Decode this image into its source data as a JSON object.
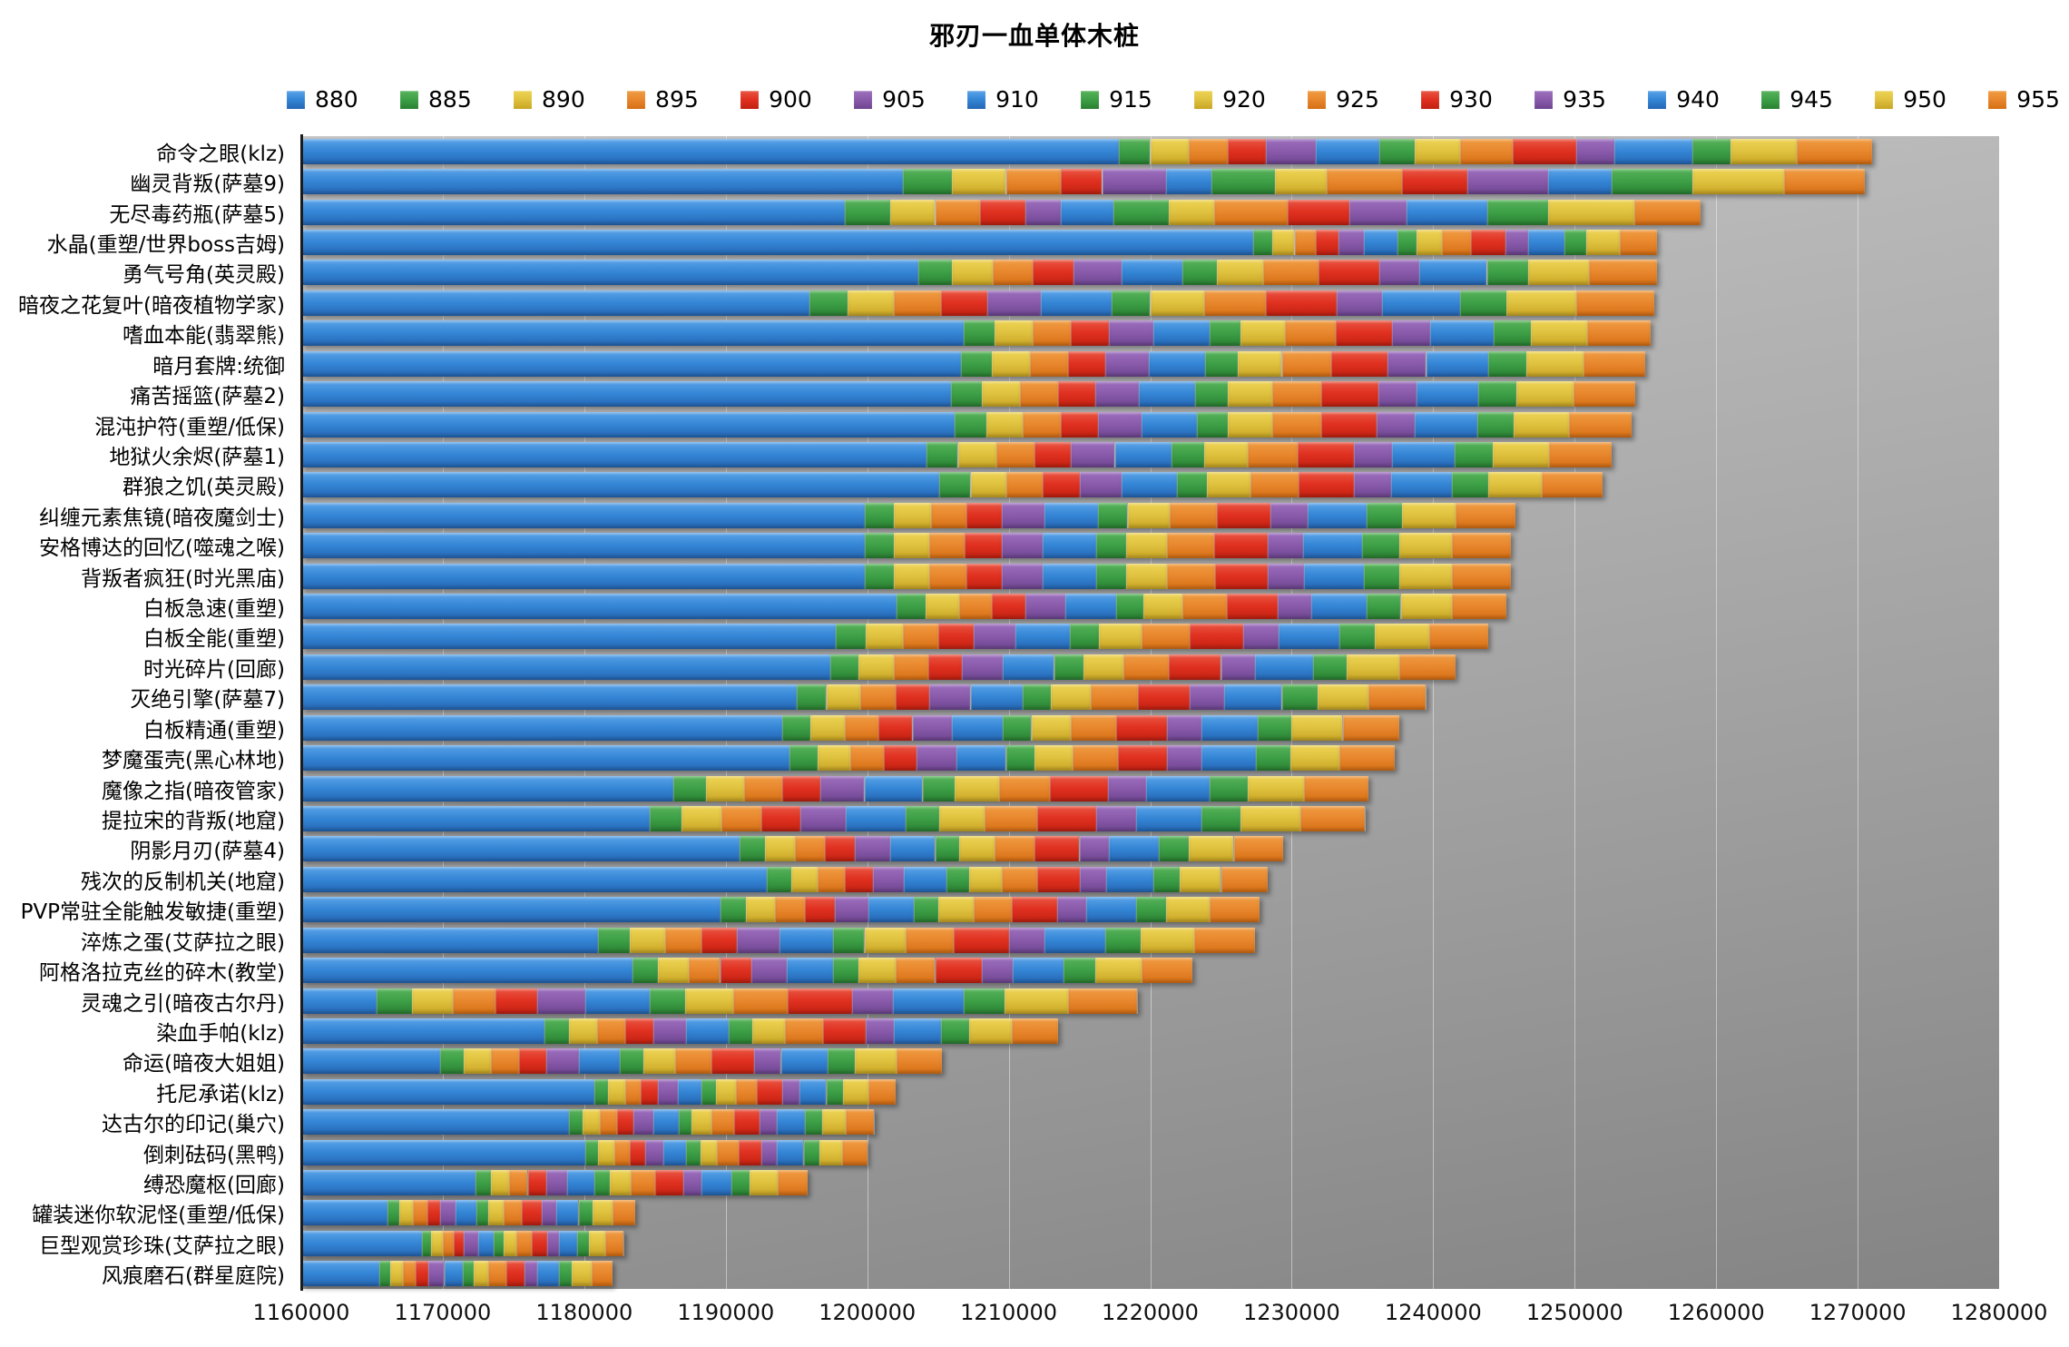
{
  "title": "邪刃一血单体木桩",
  "legend": {
    "labels": [
      "880",
      "885",
      "890",
      "895",
      "900",
      "905",
      "910",
      "915",
      "920",
      "925",
      "930",
      "935",
      "940",
      "945",
      "950",
      "955"
    ]
  },
  "palette": [
    {
      "name": "blue",
      "light": "#5aa3e8",
      "base": "#3486d6",
      "dark": "#2566b4"
    },
    {
      "name": "green",
      "light": "#58b35a",
      "base": "#3da047",
      "dark": "#2a8032"
    },
    {
      "name": "yellow",
      "light": "#eed354",
      "base": "#dfc23f",
      "dark": "#c9a524"
    },
    {
      "name": "orange",
      "light": "#f09c42",
      "base": "#e8872e",
      "dark": "#d66f14"
    },
    {
      "name": "red",
      "light": "#ea5643",
      "base": "#e03020",
      "dark": "#c22111"
    },
    {
      "name": "purple",
      "light": "#9c6fbd",
      "base": "#8a5bab",
      "dark": "#6e4590"
    }
  ],
  "axis": {
    "ticks": [
      "1160000",
      "1170000",
      "1180000",
      "1190000",
      "1200000",
      "1210000",
      "1220000",
      "1230000",
      "1240000",
      "1250000",
      "1260000",
      "1270000",
      "1280000"
    ]
  },
  "chart_data": {
    "type": "bar",
    "stacked": true,
    "orientation": "horizontal",
    "title": "邪刃一血单体木桩",
    "xlabel": "",
    "ylabel": "",
    "xlim": [
      1160000,
      1280000
    ],
    "x_ticks": [
      1160000,
      1170000,
      1180000,
      1190000,
      1200000,
      1210000,
      1220000,
      1230000,
      1240000,
      1250000,
      1260000,
      1270000,
      1280000
    ],
    "grid": true,
    "legend_position": "top",
    "series_labels": [
      "880",
      "885",
      "890",
      "895",
      "900",
      "905",
      "910",
      "915",
      "920",
      "925",
      "930",
      "935",
      "940",
      "945",
      "950",
      "955"
    ],
    "values_note": "cumulative totals at each item level; segment for 880 spans from axis min 1160000 to values[0], each later segment spans from previous value to its value",
    "rows": [
      {
        "label": "命令之眼(klz)",
        "values": [
          1217800,
          1220000,
          1222700,
          1225500,
          1228200,
          1231700,
          1236200,
          1238700,
          1241900,
          1245600,
          1250100,
          1252800,
          1258300,
          1261000,
          1265700,
          1271000
        ]
      },
      {
        "label": "幽灵背叛(萨墓9)",
        "values": [
          1202500,
          1206000,
          1209800,
          1213700,
          1216600,
          1221100,
          1224300,
          1228800,
          1232500,
          1237800,
          1242400,
          1248100,
          1252600,
          1258300,
          1264800,
          1270500
        ]
      },
      {
        "label": "无尽毒药瓶(萨墓5)",
        "values": [
          1198400,
          1201600,
          1204800,
          1208000,
          1211200,
          1213700,
          1217400,
          1221300,
          1224500,
          1229700,
          1234100,
          1238100,
          1243800,
          1248100,
          1254200,
          1258900
        ]
      },
      {
        "label": "水晶(重塑/世界boss吉姆)",
        "values": [
          1227300,
          1228600,
          1230200,
          1231700,
          1233300,
          1235100,
          1237500,
          1238800,
          1240600,
          1242700,
          1245100,
          1246700,
          1249300,
          1250800,
          1253200,
          1255800
        ]
      },
      {
        "label": "勇气号角(英灵殿)",
        "values": [
          1203600,
          1206000,
          1208900,
          1211700,
          1214600,
          1218000,
          1222300,
          1224700,
          1228000,
          1231900,
          1236200,
          1239000,
          1243800,
          1246700,
          1251000,
          1255800
        ]
      },
      {
        "label": "暗夜之花复叶(暗夜植物学家)",
        "values": [
          1195900,
          1198600,
          1201900,
          1205200,
          1208500,
          1212300,
          1217300,
          1220000,
          1223800,
          1228200,
          1233200,
          1236400,
          1241900,
          1245200,
          1250100,
          1255600
        ]
      },
      {
        "label": "嗜血本能(翡翠熊)",
        "values": [
          1206800,
          1209000,
          1211700,
          1214400,
          1217100,
          1220200,
          1224200,
          1226400,
          1229500,
          1233100,
          1237100,
          1239800,
          1244300,
          1246900,
          1250900,
          1255400
        ]
      },
      {
        "label": "暗月套牌:统御",
        "values": [
          1206600,
          1208800,
          1211500,
          1214200,
          1216800,
          1219900,
          1223900,
          1226200,
          1229300,
          1232800,
          1236800,
          1239500,
          1243900,
          1246600,
          1250600,
          1255000
        ]
      },
      {
        "label": "痛苦摇篮(萨墓2)",
        "values": [
          1205900,
          1208100,
          1210800,
          1213500,
          1216100,
          1219200,
          1223200,
          1225500,
          1228600,
          1232100,
          1236100,
          1238800,
          1243200,
          1245900,
          1249900,
          1254300
        ]
      },
      {
        "label": "混沌护符(重塑/低保)",
        "values": [
          1206200,
          1208400,
          1211000,
          1213700,
          1216300,
          1219400,
          1223300,
          1225500,
          1228600,
          1232100,
          1236000,
          1238700,
          1243100,
          1245700,
          1249600,
          1254000
        ]
      },
      {
        "label": "地狱火余烬(萨墓1)",
        "values": [
          1204200,
          1206400,
          1209100,
          1211800,
          1214400,
          1217500,
          1221500,
          1223800,
          1226900,
          1230400,
          1234400,
          1237100,
          1241500,
          1244200,
          1248200,
          1252600
        ]
      },
      {
        "label": "群狼之饥(英灵殿)",
        "values": [
          1205100,
          1207300,
          1209800,
          1212400,
          1215000,
          1218000,
          1221900,
          1224000,
          1227100,
          1230500,
          1234400,
          1237000,
          1241300,
          1243900,
          1247700,
          1252000
        ]
      },
      {
        "label": "纠缠元素焦镜(暗夜魔剑士)",
        "values": [
          1199800,
          1201900,
          1204500,
          1207000,
          1209500,
          1212500,
          1216300,
          1218400,
          1221400,
          1224700,
          1228500,
          1231100,
          1235300,
          1237800,
          1241600,
          1245800
        ]
      },
      {
        "label": "安格博达的回忆(噬魂之喉)",
        "values": [
          1199800,
          1201900,
          1204400,
          1206900,
          1209500,
          1212400,
          1216200,
          1218300,
          1221200,
          1224500,
          1228300,
          1230800,
          1235000,
          1237600,
          1241300,
          1245500
        ]
      },
      {
        "label": "背叛者疯狂(时光黑庙)",
        "values": [
          1199800,
          1201900,
          1204400,
          1207000,
          1209500,
          1212400,
          1216200,
          1218300,
          1221200,
          1224600,
          1228300,
          1230900,
          1235100,
          1237600,
          1241300,
          1245500
        ]
      },
      {
        "label": "白板急速(重塑)",
        "values": [
          1202100,
          1204100,
          1206500,
          1208800,
          1211200,
          1214000,
          1217600,
          1219500,
          1222300,
          1225400,
          1229000,
          1231400,
          1235300,
          1237700,
          1241300,
          1245200
        ]
      },
      {
        "label": "白板全能(重塑)",
        "values": [
          1197800,
          1199900,
          1202500,
          1205000,
          1207500,
          1210500,
          1214300,
          1216400,
          1219400,
          1222800,
          1226600,
          1229100,
          1233400,
          1235900,
          1239700,
          1243900
        ]
      },
      {
        "label": "时光碎片(回廊)",
        "values": [
          1197400,
          1199400,
          1201900,
          1204300,
          1206700,
          1209600,
          1213200,
          1215300,
          1218100,
          1221300,
          1225000,
          1227400,
          1231500,
          1233900,
          1237600,
          1241600
        ]
      },
      {
        "label": "灭绝引擎(萨墓7)",
        "values": [
          1195000,
          1197100,
          1199500,
          1202000,
          1204400,
          1207300,
          1211000,
          1213000,
          1215800,
          1219100,
          1222800,
          1225200,
          1229300,
          1231800,
          1235400,
          1239500
        ]
      },
      {
        "label": "白板精通(重塑)",
        "values": [
          1194000,
          1196000,
          1198400,
          1200800,
          1203200,
          1206000,
          1209600,
          1211600,
          1214400,
          1217600,
          1221200,
          1223600,
          1227600,
          1230000,
          1233600,
          1237600
        ]
      },
      {
        "label": "梦魔蛋壳(黑心林地)",
        "values": [
          1194500,
          1196500,
          1198800,
          1201200,
          1203500,
          1206300,
          1209800,
          1211800,
          1214500,
          1217700,
          1221200,
          1223600,
          1227500,
          1229900,
          1233400,
          1237300
        ]
      },
      {
        "label": "魔像之指(暗夜管家)",
        "values": [
          1186300,
          1188600,
          1191300,
          1194000,
          1196700,
          1199800,
          1203900,
          1206200,
          1209300,
          1212900,
          1217000,
          1219700,
          1224200,
          1226900,
          1230900,
          1235400
        ]
      },
      {
        "label": "提拉宋的背叛(地窟)",
        "values": [
          1184600,
          1186900,
          1189700,
          1192500,
          1195300,
          1198500,
          1202700,
          1205100,
          1208300,
          1212000,
          1216200,
          1219000,
          1223600,
          1226400,
          1230600,
          1235200
        ]
      },
      {
        "label": "阴影月刃(萨墓4)",
        "values": [
          1191000,
          1192800,
          1194900,
          1197000,
          1199100,
          1201600,
          1204800,
          1206500,
          1209000,
          1211800,
          1215000,
          1217100,
          1220600,
          1222700,
          1225900,
          1229400
        ]
      },
      {
        "label": "残次的反制机关(地窟)",
        "values": [
          1192900,
          1194600,
          1196500,
          1198400,
          1200400,
          1202600,
          1205600,
          1207200,
          1209500,
          1212000,
          1215000,
          1216900,
          1220200,
          1222100,
          1225000,
          1228300
        ]
      },
      {
        "label": "PVP常驻全能触发敏捷(重塑)",
        "values": [
          1189600,
          1191400,
          1193500,
          1195600,
          1197700,
          1200100,
          1203300,
          1205000,
          1207500,
          1210200,
          1213400,
          1215500,
          1219000,
          1221100,
          1224200,
          1227700
        ]
      },
      {
        "label": "淬炼之蛋(艾萨拉之眼)",
        "values": [
          1181000,
          1183200,
          1185700,
          1188300,
          1190800,
          1193800,
          1197600,
          1199800,
          1202700,
          1206100,
          1210000,
          1212500,
          1216800,
          1219300,
          1223100,
          1227400
        ]
      },
      {
        "label": "阿格洛拉克丝的碎木(教堂)",
        "values": [
          1183400,
          1185200,
          1187400,
          1189600,
          1191800,
          1194300,
          1197600,
          1199400,
          1202000,
          1204800,
          1208100,
          1210300,
          1213900,
          1216100,
          1219400,
          1223000
        ]
      },
      {
        "label": "灵魂之引(暗夜古尔丹)",
        "values": [
          1165300,
          1167800,
          1170700,
          1173700,
          1176700,
          1180100,
          1184600,
          1187100,
          1190500,
          1194400,
          1198900,
          1201800,
          1206800,
          1209700,
          1214200,
          1219100
        ]
      },
      {
        "label": "染血手帕(klz)",
        "values": [
          1177200,
          1178900,
          1180900,
          1182900,
          1184900,
          1187200,
          1190200,
          1191900,
          1194200,
          1196900,
          1199900,
          1201900,
          1205200,
          1207200,
          1210200,
          1213500
        ]
      },
      {
        "label": "命运(暗夜大姐姐)",
        "values": [
          1169800,
          1171500,
          1173400,
          1175400,
          1177300,
          1179600,
          1182500,
          1184200,
          1186400,
          1189000,
          1192000,
          1193900,
          1197200,
          1199100,
          1202100,
          1205300
        ]
      },
      {
        "label": "托尼承诺(klz)",
        "values": [
          1180700,
          1181700,
          1182900,
          1184000,
          1185200,
          1186600,
          1188300,
          1189300,
          1190700,
          1192200,
          1194000,
          1195200,
          1197100,
          1198300,
          1200100,
          1202000
        ]
      },
      {
        "label": "达古尔的印记(巢穴)",
        "values": [
          1178900,
          1179900,
          1181100,
          1182300,
          1183500,
          1184900,
          1186700,
          1187600,
          1189000,
          1190600,
          1192400,
          1193600,
          1195600,
          1196800,
          1198500,
          1200500
        ]
      },
      {
        "label": "倒刺砝码(黑鸭)",
        "values": [
          1180100,
          1181000,
          1182100,
          1183200,
          1184300,
          1185600,
          1187200,
          1188200,
          1189400,
          1190900,
          1192500,
          1193600,
          1195500,
          1196600,
          1198200,
          1200000
        ]
      },
      {
        "label": "缚恐魔枢(回廊)",
        "values": [
          1172300,
          1173400,
          1174700,
          1176000,
          1177300,
          1178800,
          1180700,
          1181800,
          1183300,
          1185000,
          1187000,
          1188300,
          1190400,
          1191700,
          1193700,
          1195800
        ]
      },
      {
        "label": "罐装迷你软泥怪(重塑/低保)",
        "values": [
          1166100,
          1166900,
          1167900,
          1168900,
          1169800,
          1170900,
          1172400,
          1173200,
          1174300,
          1175600,
          1177000,
          1178000,
          1179600,
          1180600,
          1182000,
          1183600
        ]
      },
      {
        "label": "巨型观赏珍珠(艾萨拉之眼)",
        "values": [
          1168500,
          1169200,
          1170000,
          1170800,
          1171500,
          1172500,
          1173600,
          1174300,
          1175200,
          1176300,
          1177400,
          1178200,
          1179500,
          1180300,
          1181500,
          1182800
        ]
      },
      {
        "label": "风痕磨石(群星庭院)",
        "values": [
          1165500,
          1166300,
          1167200,
          1168100,
          1169000,
          1170100,
          1171400,
          1172200,
          1173200,
          1174500,
          1175800,
          1176700,
          1178200,
          1179100,
          1180500,
          1182000
        ]
      }
    ]
  }
}
